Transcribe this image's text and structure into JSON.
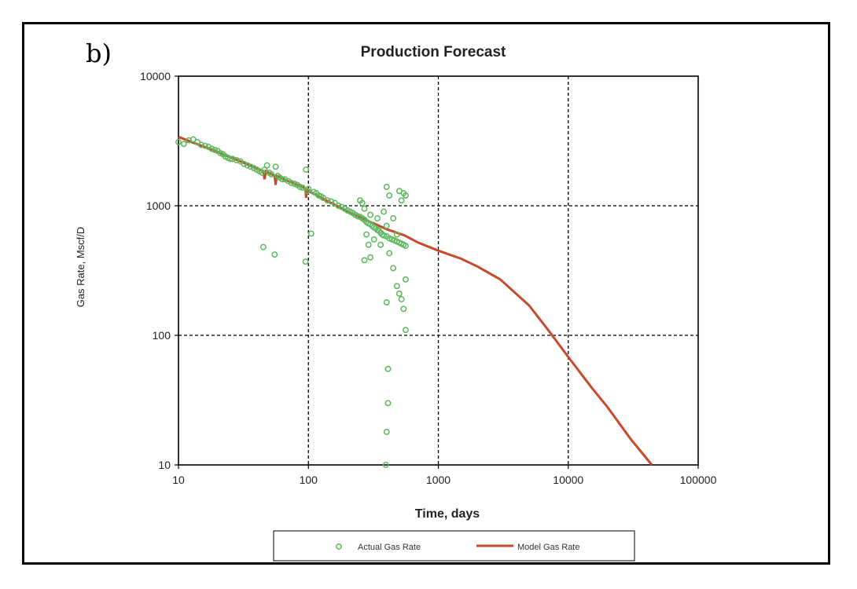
{
  "panel_label": "b)",
  "colors": {
    "actual": "#5cb85c",
    "model": "#c84a2c",
    "axis": "#000000"
  },
  "chart_data": {
    "type": "scatter",
    "title": "Production Forecast",
    "xlabel": "Time, days",
    "ylabel": "Gas Rate, Mscf/D",
    "xscale": "log",
    "yscale": "log",
    "xlim": [
      10,
      100000
    ],
    "ylim": [
      10,
      10000
    ],
    "x_ticks": [
      "10",
      "100",
      "1000",
      "10000",
      "100000"
    ],
    "y_ticks": [
      "10",
      "100",
      "1000",
      "10000"
    ],
    "grid": true,
    "legend_position": "bottom",
    "series": [
      {
        "name": "Actual Gas Rate",
        "kind": "scatter",
        "points": [
          [
            10,
            3100
          ],
          [
            11,
            3000
          ],
          [
            12,
            3200
          ],
          [
            13,
            3250
          ],
          [
            14,
            3100
          ],
          [
            15,
            2950
          ],
          [
            16,
            2900
          ],
          [
            17,
            2850
          ],
          [
            18,
            2750
          ],
          [
            19,
            2700
          ],
          [
            20,
            2650
          ],
          [
            21,
            2550
          ],
          [
            22,
            2500
          ],
          [
            23,
            2400
          ],
          [
            24,
            2350
          ],
          [
            25,
            2300
          ],
          [
            26,
            2300
          ],
          [
            28,
            2250
          ],
          [
            30,
            2200
          ],
          [
            32,
            2100
          ],
          [
            34,
            2050
          ],
          [
            36,
            2000
          ],
          [
            38,
            1950
          ],
          [
            40,
            1900
          ],
          [
            42,
            1850
          ],
          [
            44,
            1800
          ],
          [
            45,
            480
          ],
          [
            46,
            1900
          ],
          [
            48,
            2050
          ],
          [
            50,
            1800
          ],
          [
            52,
            1750
          ],
          [
            55,
            420
          ],
          [
            56,
            2000
          ],
          [
            58,
            1700
          ],
          [
            60,
            1650
          ],
          [
            63,
            1600
          ],
          [
            66,
            1600
          ],
          [
            70,
            1550
          ],
          [
            74,
            1500
          ],
          [
            78,
            1480
          ],
          [
            82,
            1450
          ],
          [
            86,
            1400
          ],
          [
            90,
            1380
          ],
          [
            95,
            370
          ],
          [
            96,
            1900
          ],
          [
            98,
            1300
          ],
          [
            100,
            1350
          ],
          [
            105,
            610
          ],
          [
            110,
            1280
          ],
          [
            115,
            1250
          ],
          [
            120,
            1200
          ],
          [
            125,
            1180
          ],
          [
            130,
            1150
          ],
          [
            140,
            1100
          ],
          [
            150,
            1080
          ],
          [
            160,
            1050
          ],
          [
            170,
            1000
          ],
          [
            180,
            980
          ],
          [
            190,
            950
          ],
          [
            200,
            920
          ],
          [
            210,
            900
          ],
          [
            220,
            880
          ],
          [
            230,
            850
          ],
          [
            240,
            830
          ],
          [
            250,
            820
          ],
          [
            260,
            800
          ],
          [
            270,
            780
          ],
          [
            280,
            750
          ],
          [
            290,
            730
          ],
          [
            300,
            720
          ],
          [
            310,
            700
          ],
          [
            320,
            680
          ],
          [
            330,
            670
          ],
          [
            340,
            650
          ],
          [
            350,
            640
          ],
          [
            360,
            620
          ],
          [
            370,
            600
          ],
          [
            380,
            590
          ],
          [
            400,
            580
          ],
          [
            420,
            560
          ],
          [
            440,
            550
          ],
          [
            460,
            540
          ],
          [
            480,
            530
          ],
          [
            500,
            520
          ],
          [
            520,
            510
          ],
          [
            540,
            500
          ],
          [
            560,
            490
          ],
          [
            250,
            1100
          ],
          [
            260,
            1050
          ],
          [
            270,
            950
          ],
          [
            280,
            600
          ],
          [
            290,
            500
          ],
          [
            300,
            400
          ],
          [
            270,
            380
          ],
          [
            300,
            850
          ],
          [
            320,
            550
          ],
          [
            340,
            800
          ],
          [
            360,
            500
          ],
          [
            380,
            900
          ],
          [
            400,
            700
          ],
          [
            400,
            1400
          ],
          [
            420,
            1200
          ],
          [
            450,
            800
          ],
          [
            480,
            600
          ],
          [
            500,
            1300
          ],
          [
            520,
            1100
          ],
          [
            540,
            1250
          ],
          [
            560,
            1200
          ],
          [
            420,
            430
          ],
          [
            450,
            330
          ],
          [
            480,
            240
          ],
          [
            500,
            210
          ],
          [
            520,
            190
          ],
          [
            540,
            160
          ],
          [
            560,
            270
          ],
          [
            560,
            110
          ],
          [
            400,
            180
          ],
          [
            410,
            55
          ],
          [
            410,
            30
          ],
          [
            400,
            18
          ],
          [
            395,
            10
          ]
        ]
      },
      {
        "name": "Model Gas Rate",
        "kind": "line",
        "points": [
          [
            10,
            3400
          ],
          [
            15,
            2900
          ],
          [
            20,
            2600
          ],
          [
            30,
            2200
          ],
          [
            45,
            1850
          ],
          [
            46,
            1600
          ],
          [
            47,
            1850
          ],
          [
            55,
            1700
          ],
          [
            56,
            1450
          ],
          [
            57,
            1700
          ],
          [
            70,
            1550
          ],
          [
            90,
            1400
          ],
          [
            95,
            1350
          ],
          [
            96,
            1150
          ],
          [
            97,
            1320
          ],
          [
            100,
            1300
          ],
          [
            150,
            1050
          ],
          [
            200,
            900
          ],
          [
            300,
            750
          ],
          [
            400,
            660
          ],
          [
            550,
            590
          ],
          [
            700,
            520
          ],
          [
            1000,
            450
          ],
          [
            1500,
            390
          ],
          [
            2000,
            340
          ],
          [
            3000,
            270
          ],
          [
            5000,
            170
          ],
          [
            7000,
            110
          ],
          [
            10000,
            68
          ],
          [
            15000,
            40
          ],
          [
            20000,
            28
          ],
          [
            30000,
            16
          ],
          [
            44000,
            10
          ]
        ]
      }
    ]
  }
}
